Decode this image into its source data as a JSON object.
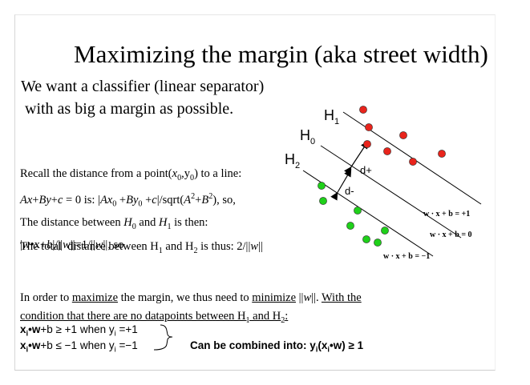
{
  "title": "Maximizing the margin (aka street width)",
  "intro": {
    "line1": "We want a classifier (linear separator)",
    "line2": " with as big a margin as possible."
  },
  "recall": {
    "l1_a": "Recall the distance from a point(",
    "l1_x": "x",
    "l1_sub0": "0",
    "l1_comma": ",",
    "l1_y": "y",
    "l1_sub0b": "0",
    "l1_b": ") to a line:",
    "l2": "Ax+By+c = 0 is: |Ax0 +By0 +c|/sqrt(A2+B2), so,",
    "l3": "The distance between H0 and H1 is then:",
    "l4": "|w•x+b|/||w||=1/||w||, so"
  },
  "total": "The total  distance between H1 and H2 is thus: 2/||w||",
  "maximize": {
    "pre": "In order to ",
    "maximize": "maximize",
    "mid": " the margin, we thus need to ",
    "minimize": "minimize",
    "post": " ||w||. ",
    "with_the": "With the",
    "condition": "condition that there are no datapoints between H1 and H2:"
  },
  "eq1": {
    "x": "x",
    "i1": "i",
    "w": "•w",
    "rest": "+b ≥ +1 when y",
    "i2": "i",
    "end": " =+1"
  },
  "eq2": {
    "x": "x",
    "i1": "i",
    "w": "•w",
    "rest": "+b ≤ −1 when y",
    "i2": "i",
    "end": " =−1"
  },
  "combined": {
    "a": "Can be combined into: y",
    "i1": "i",
    "b": "(x",
    "i2": "i",
    "c": "•w) ≥ 1"
  },
  "diagram": {
    "h1": "H",
    "h1_sub": "1",
    "h0": "H",
    "h0_sub": "0",
    "h2": "H",
    "h2_sub": "2",
    "dplus": "d+",
    "dminus": "d-",
    "eq_plus": "w · x + b = +1",
    "eq_zero": "w · x + b = 0",
    "eq_minus": "w · x + b = −1",
    "colors": {
      "red": "#e8241c",
      "green": "#1fd01a"
    }
  }
}
